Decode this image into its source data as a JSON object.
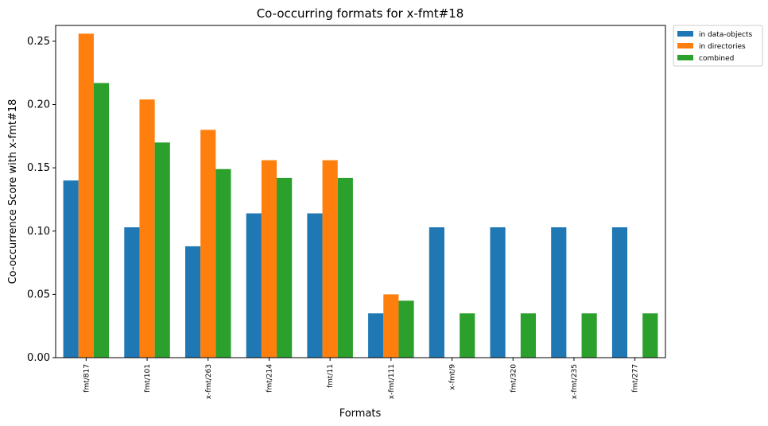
{
  "chart_data": {
    "type": "bar",
    "title": "Co-occurring formats for x-fmt#18",
    "xlabel": "Formats",
    "ylabel": "Co-occurrence Score with x-fmt#18",
    "categories": [
      "fmt/817",
      "fmt/101",
      "x-fmt/263",
      "fmt/214",
      "fmt/11",
      "x-fmt/111",
      "x-fmt/9",
      "fmt/320",
      "x-fmt/235",
      "fmt/277"
    ],
    "series": [
      {
        "name": "in data-objects",
        "color": "#1f77b4",
        "values": [
          0.14,
          0.103,
          0.088,
          0.114,
          0.114,
          0.035,
          0.103,
          0.103,
          0.103,
          0.103
        ]
      },
      {
        "name": "in directories",
        "color": "#ff7f0e",
        "values": [
          0.256,
          0.204,
          0.18,
          0.156,
          0.156,
          0.05,
          0,
          0,
          0,
          0
        ]
      },
      {
        "name": "combined",
        "color": "#2ca02c",
        "values": [
          0.217,
          0.17,
          0.149,
          0.142,
          0.142,
          0.045,
          0.035,
          0.035,
          0.035,
          0.035
        ]
      }
    ],
    "ylim": [
      0,
      0.2625
    ],
    "yticks": [
      0.0,
      0.05,
      0.1,
      0.15,
      0.2,
      0.25
    ],
    "ytick_labels": [
      "0.00",
      "0.05",
      "0.10",
      "0.15",
      "0.20",
      "0.25"
    ],
    "grid": false,
    "legend_position": "outside-top-right"
  }
}
